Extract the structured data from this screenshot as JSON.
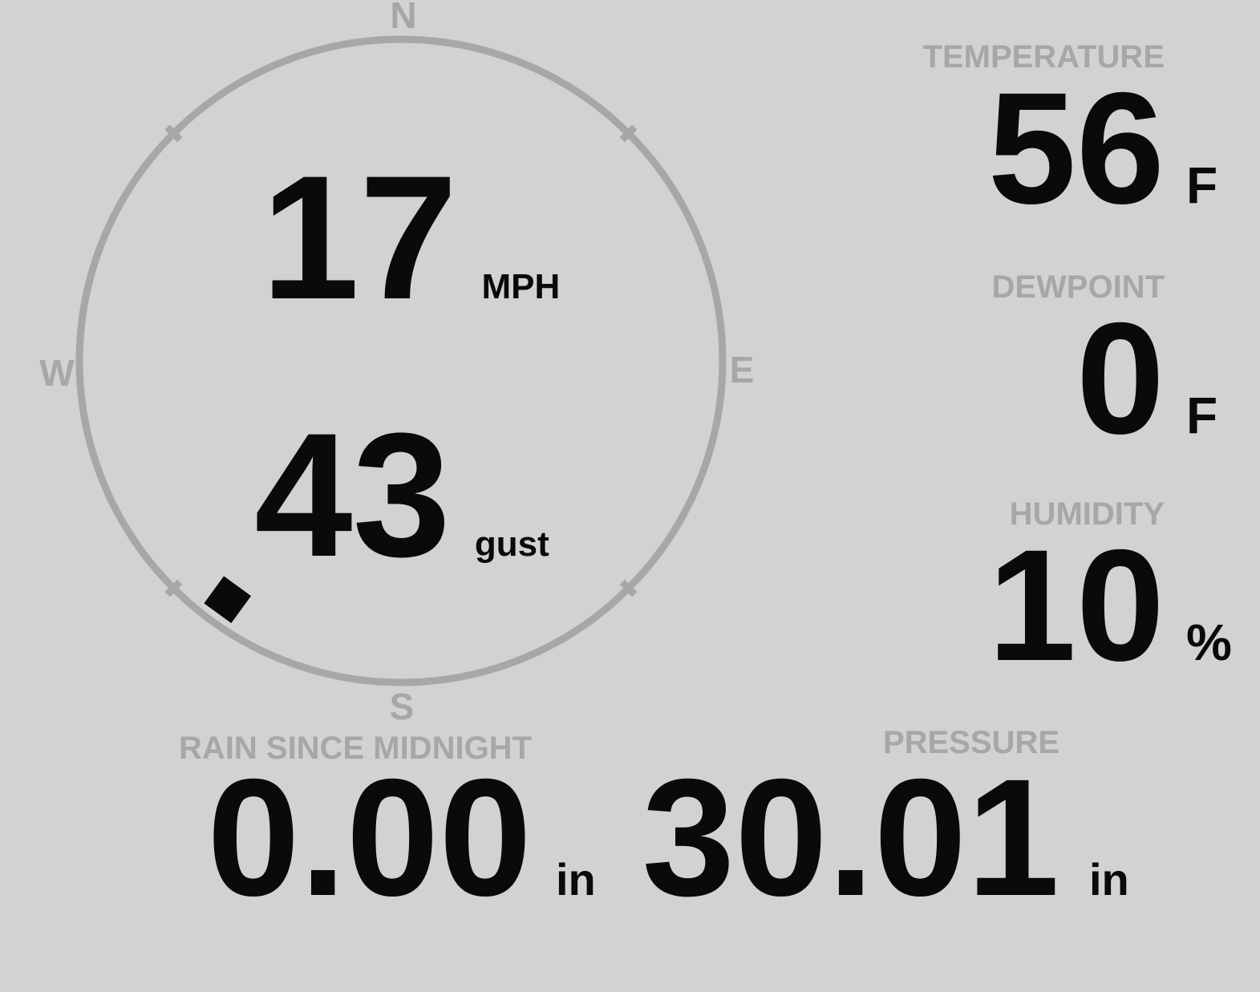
{
  "colors": {
    "background": "#d2d2d2",
    "muted_gray": "#a7a7a7",
    "value_black": "#0a0a0a"
  },
  "compass": {
    "north": "N",
    "east": "E",
    "south": "S",
    "west": "W"
  },
  "wind": {
    "speed": "17",
    "speed_unit": "MPH",
    "gust": "43",
    "gust_unit": "gust",
    "direction_deg": 216
  },
  "metrics": {
    "temperature": {
      "label": "TEMPERATURE",
      "value": "56",
      "unit": "F"
    },
    "dewpoint": {
      "label": "DEWPOINT",
      "value": "0",
      "unit": "F"
    },
    "humidity": {
      "label": "HUMIDITY",
      "value": "10",
      "unit": "%"
    },
    "rain": {
      "label": "RAIN SINCE MIDNIGHT",
      "value": "0.00",
      "unit": "in"
    },
    "pressure": {
      "label": "PRESSURE",
      "value": "30.01",
      "unit": "in"
    }
  }
}
